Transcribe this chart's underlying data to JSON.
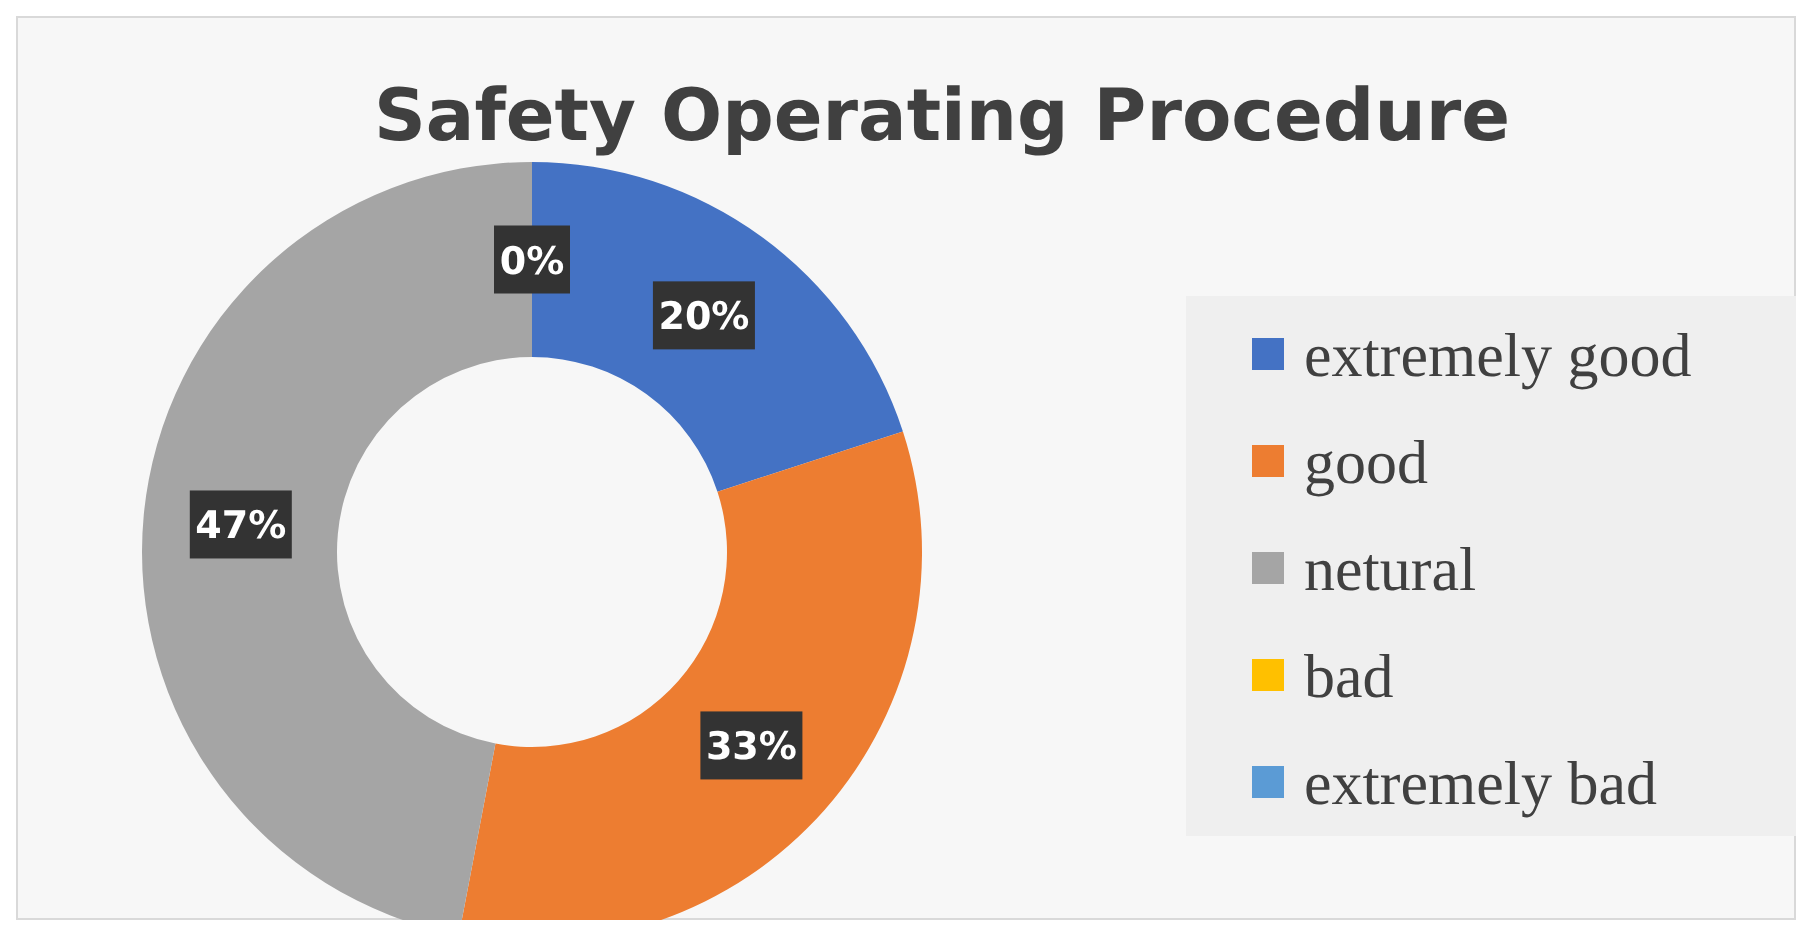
{
  "chart_data": {
    "type": "donut",
    "title": "Safety Operating Procedure",
    "categories": [
      "extremely good",
      "good",
      "netural",
      "bad",
      "extremely bad"
    ],
    "values": [
      20,
      33,
      47,
      0,
      0
    ],
    "colors": [
      "#4472c4",
      "#ed7d31",
      "#a5a5a5",
      "#ffc000",
      "#5b9bd5"
    ],
    "value_labels": [
      "20%",
      "33%",
      "47%",
      "0%",
      null
    ],
    "legend": "right"
  }
}
